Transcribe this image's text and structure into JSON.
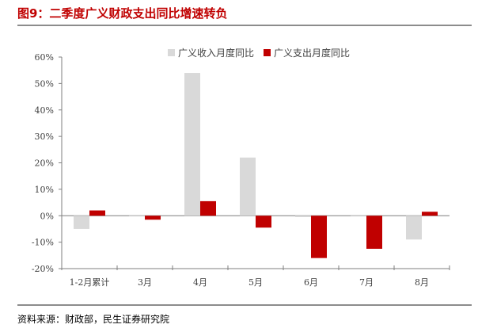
{
  "title": "图9：二季度广义财政支出同比增速转负",
  "source": "资料来源：财政部，民生证券研究院",
  "colors": {
    "title": "#c00000",
    "revenue": "#d9d9d9",
    "expenditure": "#c00000",
    "axis": "#7f7f7f",
    "text": "#404040"
  },
  "chart_data": {
    "type": "bar",
    "categories": [
      "1-2月累计",
      "3月",
      "4月",
      "5月",
      "6月",
      "7月",
      "8月"
    ],
    "series": [
      {
        "name": "广义收入月度同比",
        "values": [
          -5,
          0,
          54,
          22,
          -0.5,
          0,
          -9
        ]
      },
      {
        "name": "广义支出月度同比",
        "values": [
          2,
          -1.5,
          5.5,
          -4.5,
          -16,
          -12.5,
          1.5
        ]
      }
    ],
    "yticks": [
      "-20%",
      "-10%",
      "0%",
      "10%",
      "20%",
      "30%",
      "40%",
      "50%",
      "60%"
    ],
    "ylim": [
      -20,
      60
    ],
    "legend": "top-right",
    "grid": false
  }
}
